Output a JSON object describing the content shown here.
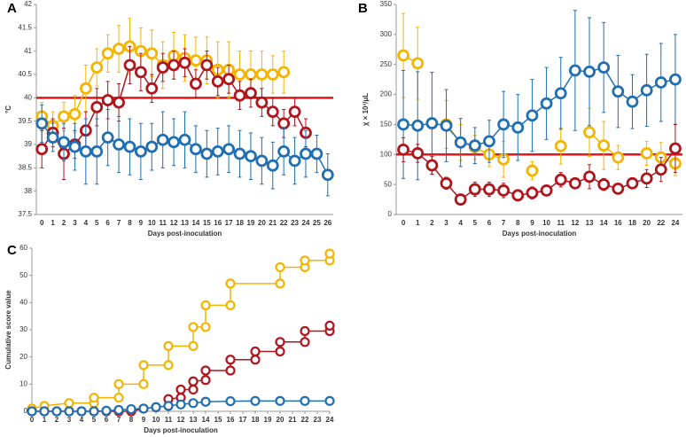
{
  "chart_data": [
    {
      "type": "line",
      "label": "A",
      "y_label": "°C",
      "x_label": "Days post-inoculation",
      "categories": [
        "0",
        "1",
        "2",
        "3",
        "4",
        "5",
        "6",
        "7",
        "8",
        "9",
        "10",
        "11",
        "12",
        "13",
        "14",
        "15",
        "16",
        "17",
        "18",
        "19",
        "20",
        "21",
        "22",
        "23",
        "24",
        "25",
        "26"
      ],
      "ylim": [
        37.5,
        42
      ],
      "yticks": [
        37.5,
        38,
        38.5,
        39,
        39.5,
        40,
        40.5,
        41,
        41.5,
        42
      ],
      "hline": 40,
      "hline_color": "#e8151b",
      "series": [
        {
          "color": "#f5b400",
          "values": [
            39.6,
            39.4,
            39.6,
            39.65,
            40.2,
            40.65,
            40.95,
            41.05,
            41.1,
            41.0,
            40.95,
            40.7,
            40.9,
            40.85,
            40.8,
            40.8,
            40.6,
            40.6,
            40.5,
            40.5,
            40.5,
            40.5,
            40.55,
            null,
            null,
            null,
            null
          ],
          "errors": [
            0.3,
            0.3,
            0.3,
            0.4,
            0.5,
            0.4,
            0.4,
            0.5,
            0.6,
            0.5,
            0.5,
            0.5,
            0.5,
            0.5,
            0.5,
            0.5,
            0.6,
            0.6,
            0.5,
            0.5,
            0.5,
            0.4,
            0.45,
            null,
            null,
            null,
            null
          ]
        },
        {
          "color": "#b0151c",
          "values": [
            38.9,
            39.25,
            38.8,
            39.0,
            39.3,
            39.8,
            39.95,
            39.9,
            40.7,
            40.55,
            40.2,
            40.65,
            40.7,
            40.75,
            40.3,
            40.7,
            40.35,
            40.4,
            40.05,
            40.1,
            39.9,
            39.7,
            39.45,
            39.7,
            39.25,
            null,
            null
          ],
          "errors": [
            0.4,
            0.3,
            0.55,
            0.3,
            0.4,
            0.4,
            0.4,
            0.4,
            0.4,
            0.4,
            0.3,
            0.3,
            0.3,
            0.3,
            0.3,
            0.3,
            0.3,
            0.3,
            0.3,
            0.3,
            0.3,
            0.3,
            0.3,
            0.3,
            0.3,
            null,
            null
          ]
        },
        {
          "color": "#1f6fb2",
          "values": [
            39.45,
            39.15,
            39.05,
            38.95,
            38.85,
            38.85,
            39.15,
            39.0,
            38.95,
            38.85,
            38.95,
            39.1,
            39.05,
            39.1,
            38.9,
            38.8,
            38.85,
            38.9,
            38.8,
            38.75,
            38.65,
            38.55,
            38.85,
            38.65,
            38.8,
            38.8,
            38.35
          ],
          "errors": [
            0.4,
            0.3,
            0.4,
            0.5,
            0.7,
            0.7,
            0.6,
            0.6,
            0.6,
            0.6,
            0.5,
            0.6,
            0.5,
            0.6,
            0.5,
            0.5,
            0.5,
            0.5,
            0.5,
            0.5,
            0.5,
            0.5,
            0.5,
            0.5,
            0.5,
            0.4,
            0.45
          ]
        }
      ]
    },
    {
      "type": "line",
      "label": "B",
      "y_label": "χ × 10³/μL",
      "x_label": "Days post-inoculation",
      "categories": [
        "0",
        "1",
        "2",
        "3",
        "4",
        "5",
        "6",
        "7",
        "8",
        "9",
        "10",
        "11",
        "12",
        "13",
        "14",
        "16",
        "18",
        "20",
        "22",
        "24"
      ],
      "ylim": [
        0,
        350
      ],
      "yticks": [
        0,
        50,
        100,
        150,
        200,
        250,
        300,
        350
      ],
      "hline": 100,
      "hline_color": "#e8151b",
      "series": [
        {
          "color": "#f5b400",
          "values": [
            265,
            252,
            null,
            150,
            120,
            112,
            100,
            92,
            null,
            73,
            null,
            114,
            null,
            137,
            115,
            95,
            null,
            102,
            95,
            85
          ],
          "errors": [
            70,
            60,
            null,
            40,
            30,
            20,
            20,
            30,
            null,
            15,
            null,
            30,
            null,
            40,
            40,
            20,
            null,
            20,
            25,
            20
          ]
        },
        {
          "color": "#1f6fb2",
          "values": [
            150,
            148,
            152,
            148,
            120,
            115,
            122,
            150,
            145,
            165,
            185,
            202,
            240,
            238,
            245,
            205,
            188,
            207,
            220,
            225
          ],
          "errors": [
            90,
            90,
            85,
            60,
            40,
            30,
            35,
            55,
            55,
            60,
            60,
            60,
            100,
            90,
            75,
            60,
            45,
            60,
            65,
            75
          ]
        },
        {
          "color": "#b0151c",
          "values": [
            108,
            102,
            82,
            52,
            25,
            42,
            42,
            40,
            32,
            36,
            40,
            58,
            52,
            63,
            50,
            43,
            52,
            60,
            75,
            110
          ],
          "errors": [
            20,
            15,
            15,
            10,
            5,
            12,
            12,
            12,
            5,
            10,
            8,
            12,
            8,
            20,
            10,
            8,
            8,
            15,
            20,
            40
          ]
        }
      ]
    },
    {
      "type": "step-scatter",
      "label": "C",
      "y_label": "Cumulative score value",
      "x_label": "Days post-inoculation",
      "xlim": [
        0,
        24
      ],
      "xticks": [
        0,
        1,
        2,
        3,
        4,
        5,
        6,
        7,
        8,
        9,
        10,
        11,
        12,
        13,
        14,
        15,
        16,
        17,
        18,
        19,
        20,
        21,
        22,
        23,
        24
      ],
      "ylim": [
        0,
        60
      ],
      "yticks": [
        0,
        10,
        20,
        30,
        40,
        50,
        60
      ],
      "series": [
        {
          "color": "#f5b400",
          "x": [
            0,
            1,
            3,
            5,
            5,
            7,
            7,
            9,
            9,
            11,
            11,
            13,
            13,
            14,
            14,
            16,
            16,
            20,
            20,
            22,
            22,
            24,
            24
          ],
          "values": [
            1,
            2,
            3,
            3,
            5,
            5,
            10,
            10,
            17,
            17,
            24,
            24,
            31,
            31,
            39,
            39,
            47,
            47,
            53,
            53,
            55.5,
            55.5,
            58
          ]
        },
        {
          "color": "#b0151c",
          "x": [
            0,
            1,
            2,
            3,
            4,
            5,
            6,
            7,
            8,
            9,
            10,
            11,
            11,
            12,
            12,
            13,
            13,
            14,
            14,
            16,
            16,
            18,
            18,
            20,
            20,
            22,
            22,
            24,
            24
          ],
          "values": [
            0,
            0,
            0,
            0,
            0,
            0,
            0,
            0,
            0,
            1,
            1.5,
            2,
            4.5,
            5,
            8,
            8,
            11,
            11.5,
            15,
            15,
            19,
            19,
            22,
            22,
            25.5,
            25.5,
            29.5,
            29.5,
            31.5
          ]
        },
        {
          "color": "#1f6fb2",
          "x": [
            0,
            1,
            2,
            3,
            4,
            5,
            6,
            7,
            8,
            9,
            10,
            11,
            12,
            13,
            14,
            16,
            18,
            20,
            22,
            24
          ],
          "values": [
            0,
            0,
            0,
            0,
            0,
            0,
            0.2,
            0.5,
            0.8,
            1,
            1.5,
            2,
            2.5,
            3,
            3.5,
            3.7,
            3.8,
            3.8,
            3.8,
            3.8
          ]
        }
      ]
    }
  ]
}
